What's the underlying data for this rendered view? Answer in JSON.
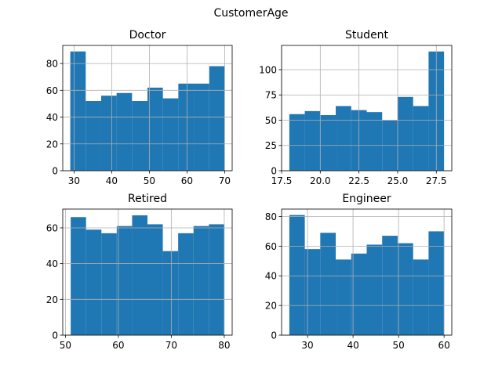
{
  "figure": {
    "suptitle": "CustomerAge"
  },
  "colors": {
    "bar": "#1f77b4",
    "grid": "#b0b0b0",
    "axis": "#000000",
    "background": "#ffffff"
  },
  "chart_data": [
    {
      "type": "bar",
      "title": "Doctor",
      "xlabel": "",
      "ylabel": "",
      "bin_edges": [
        29.0,
        33.1,
        37.2,
        41.3,
        45.4,
        49.5,
        53.6,
        57.7,
        61.8,
        65.9,
        70.0
      ],
      "values": [
        89,
        52,
        56,
        58,
        52,
        62,
        54,
        65,
        65,
        78
      ],
      "xlim": [
        27.0,
        72.0
      ],
      "ylim": [
        0,
        93.5
      ],
      "xticks": [
        30,
        40,
        50,
        60,
        70
      ],
      "xtick_labels": [
        "30",
        "40",
        "50",
        "60",
        "70"
      ],
      "yticks": [
        0,
        20,
        40,
        60,
        80
      ],
      "ytick_labels": [
        "0",
        "20",
        "40",
        "60",
        "80"
      ],
      "grid": true
    },
    {
      "type": "bar",
      "title": "Student",
      "xlabel": "",
      "ylabel": "",
      "bin_edges": [
        18.0,
        19.0,
        20.0,
        21.0,
        22.0,
        23.0,
        24.0,
        25.0,
        26.0,
        27.0,
        28.0
      ],
      "values": [
        56,
        59,
        55,
        64,
        60,
        58,
        50,
        73,
        64,
        118
      ],
      "xlim": [
        17.5,
        28.5
      ],
      "ylim": [
        0,
        124
      ],
      "xticks": [
        17.5,
        20.0,
        22.5,
        25.0,
        27.5
      ],
      "xtick_labels": [
        "17.5",
        "20.0",
        "22.5",
        "25.0",
        "27.5"
      ],
      "yticks": [
        0,
        25,
        50,
        75,
        100
      ],
      "ytick_labels": [
        "0",
        "25",
        "50",
        "75",
        "100"
      ],
      "grid": true
    },
    {
      "type": "bar",
      "title": "Retired",
      "xlabel": "",
      "ylabel": "",
      "bin_edges": [
        51.0,
        53.9,
        56.8,
        59.7,
        62.6,
        65.5,
        68.4,
        71.3,
        74.2,
        77.1,
        80.0
      ],
      "values": [
        66,
        59,
        57,
        61,
        67,
        62,
        47,
        57,
        61,
        62
      ],
      "xlim": [
        49.5,
        81.5
      ],
      "ylim": [
        0,
        70.5
      ],
      "xticks": [
        50,
        60,
        70,
        80
      ],
      "xtick_labels": [
        "50",
        "60",
        "70",
        "80"
      ],
      "yticks": [
        0,
        20,
        40,
        60
      ],
      "ytick_labels": [
        "0",
        "20",
        "40",
        "60"
      ],
      "grid": true
    },
    {
      "type": "bar",
      "title": "Engineer",
      "xlabel": "",
      "ylabel": "",
      "bin_edges": [
        26.0,
        29.4,
        32.8,
        36.2,
        39.6,
        43.0,
        46.4,
        49.8,
        53.2,
        56.6,
        60.0
      ],
      "values": [
        81,
        58,
        69,
        51,
        55,
        61,
        67,
        62,
        51,
        70
      ],
      "xlim": [
        24.3,
        61.7
      ],
      "ylim": [
        0,
        85
      ],
      "xticks": [
        30,
        40,
        50,
        60
      ],
      "xtick_labels": [
        "30",
        "40",
        "50",
        "60"
      ],
      "yticks": [
        0,
        20,
        40,
        60,
        80
      ],
      "ytick_labels": [
        "0",
        "20",
        "40",
        "60",
        "80"
      ],
      "grid": true
    }
  ]
}
